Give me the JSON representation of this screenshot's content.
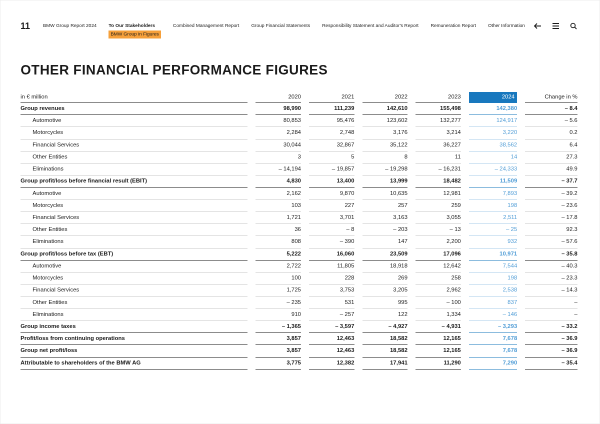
{
  "page": {
    "number": "11"
  },
  "nav": {
    "items": [
      {
        "label": "BMW Group Report 2024",
        "active": false
      },
      {
        "label": "To Our Stakeholders",
        "active": true,
        "sub": "BMW Group in Figures"
      },
      {
        "label": "Combined Management Report",
        "active": false
      },
      {
        "label": "Group Financial Statements",
        "active": false
      },
      {
        "label": "Responsibility Statement and Auditor's Report",
        "active": false
      },
      {
        "label": "Remuneration Report",
        "active": false
      },
      {
        "label": "Other Information",
        "active": false
      }
    ],
    "icons": [
      "back-arrow",
      "menu",
      "search"
    ]
  },
  "title": "OTHER FINANCIAL PERFORMANCE FIGURES",
  "table": {
    "unit_label": "in € million",
    "year_headers": [
      "2020",
      "2021",
      "2022",
      "2023",
      "2024"
    ],
    "highlight_year": "2024",
    "change_header": "Change in %",
    "rows": [
      {
        "label": "Group revenues",
        "bold": true,
        "indent": false,
        "values": [
          "98,990",
          "111,239",
          "142,610",
          "155,498",
          "142,380"
        ],
        "change": "– 8.4"
      },
      {
        "label": "Automotive",
        "bold": false,
        "indent": true,
        "values": [
          "80,853",
          "95,476",
          "123,602",
          "132,277",
          "124,917"
        ],
        "change": "– 5.6"
      },
      {
        "label": "Motorcycles",
        "bold": false,
        "indent": true,
        "values": [
          "2,284",
          "2,748",
          "3,176",
          "3,214",
          "3,220"
        ],
        "change": "0.2"
      },
      {
        "label": "Financial Services",
        "bold": false,
        "indent": true,
        "values": [
          "30,044",
          "32,867",
          "35,122",
          "36,227",
          "38,562"
        ],
        "change": "6.4"
      },
      {
        "label": "Other Entities",
        "bold": false,
        "indent": true,
        "values": [
          "3",
          "5",
          "8",
          "11",
          "14"
        ],
        "change": "27.3"
      },
      {
        "label": "Eliminations",
        "bold": false,
        "indent": true,
        "values": [
          "– 14,194",
          "– 19,857",
          "– 19,298",
          "– 16,231",
          "– 24,333"
        ],
        "change": "49.9"
      },
      {
        "label": "Group profit/loss before financial result (EBIT)",
        "bold": true,
        "indent": false,
        "values": [
          "4,830",
          "13,400",
          "13,999",
          "18,482",
          "11,509"
        ],
        "change": "– 37.7"
      },
      {
        "label": "Automotive",
        "bold": false,
        "indent": true,
        "values": [
          "2,162",
          "9,870",
          "10,635",
          "12,981",
          "7,893"
        ],
        "change": "– 39.2"
      },
      {
        "label": "Motorcycles",
        "bold": false,
        "indent": true,
        "values": [
          "103",
          "227",
          "257",
          "259",
          "198"
        ],
        "change": "– 23.6"
      },
      {
        "label": "Financial Services",
        "bold": false,
        "indent": true,
        "values": [
          "1,721",
          "3,701",
          "3,163",
          "3,055",
          "2,511"
        ],
        "change": "– 17.8"
      },
      {
        "label": "Other Entities",
        "bold": false,
        "indent": true,
        "values": [
          "36",
          "– 8",
          "– 203",
          "– 13",
          "– 25"
        ],
        "change": "92.3"
      },
      {
        "label": "Eliminations",
        "bold": false,
        "indent": true,
        "values": [
          "808",
          "– 390",
          "147",
          "2,200",
          "932"
        ],
        "change": "– 57.6"
      },
      {
        "label": "Group profit/loss before tax (EBT)",
        "bold": true,
        "indent": false,
        "values": [
          "5,222",
          "16,060",
          "23,509",
          "17,096",
          "10,971"
        ],
        "change": "– 35.8"
      },
      {
        "label": "Automotive",
        "bold": false,
        "indent": true,
        "values": [
          "2,722",
          "11,805",
          "18,918",
          "12,642",
          "7,544"
        ],
        "change": "– 40.3"
      },
      {
        "label": "Motorcycles",
        "bold": false,
        "indent": true,
        "values": [
          "100",
          "228",
          "269",
          "258",
          "198"
        ],
        "change": "– 23.3"
      },
      {
        "label": "Financial Services",
        "bold": false,
        "indent": true,
        "values": [
          "1,725",
          "3,753",
          "3,205",
          "2,962",
          "2,538"
        ],
        "change": "– 14.3"
      },
      {
        "label": "Other Entities",
        "bold": false,
        "indent": true,
        "values": [
          "– 235",
          "531",
          "995",
          "– 100",
          "837"
        ],
        "change": "–"
      },
      {
        "label": "Eliminations",
        "bold": false,
        "indent": true,
        "values": [
          "910",
          "– 257",
          "122",
          "1,334",
          "– 146"
        ],
        "change": "–"
      },
      {
        "label": "Group income taxes",
        "bold": true,
        "indent": false,
        "values": [
          "– 1,365",
          "– 3,597",
          "– 4,927",
          "– 4,931",
          "– 3,293"
        ],
        "change": "– 33.2"
      },
      {
        "label": "Profit/loss from continuing operations",
        "bold": true,
        "indent": false,
        "values": [
          "3,857",
          "12,463",
          "18,582",
          "12,165",
          "7,678"
        ],
        "change": "– 36.9"
      },
      {
        "label": "Group net profit/loss",
        "bold": true,
        "indent": false,
        "values": [
          "3,857",
          "12,463",
          "18,582",
          "12,165",
          "7,678"
        ],
        "change": "– 36.9"
      },
      {
        "label": "Attributable to shareholders of the BMW AG",
        "bold": true,
        "indent": false,
        "values": [
          "3,775",
          "12,382",
          "17,941",
          "11,290",
          "7,290"
        ],
        "change": "– 35.4"
      }
    ]
  },
  "colors": {
    "accent_blue": "#1878be",
    "value_blue": "#4f9cd6",
    "highlight_orange": "#F6A03B"
  }
}
